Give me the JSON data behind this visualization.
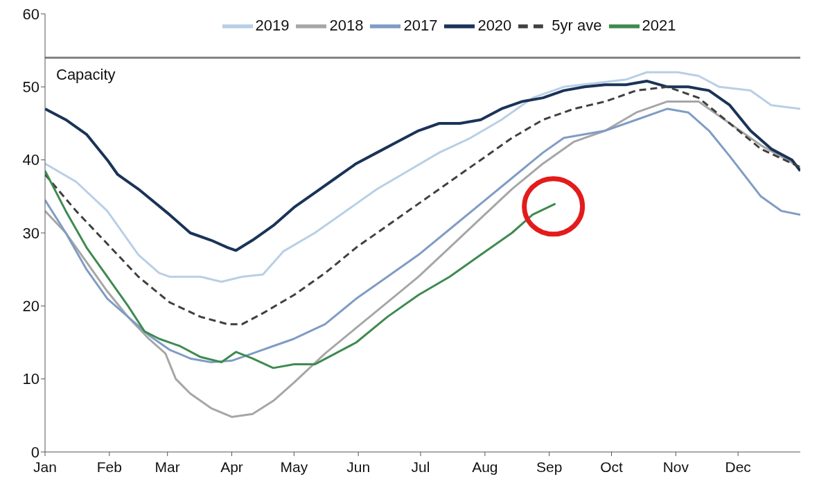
{
  "chart_data": {
    "type": "line",
    "xlim": [
      "--01-01",
      "--12-31"
    ],
    "xticks": [
      {
        "value": "--01-01",
        "label": "Jan"
      },
      {
        "value": "--02-01",
        "label": "Feb"
      },
      {
        "value": "--03-01",
        "label": "Mar"
      },
      {
        "value": "--04-01",
        "label": "Apr"
      },
      {
        "value": "--05-01",
        "label": "May"
      },
      {
        "value": "--06-01",
        "label": "Jun"
      },
      {
        "value": "--07-01",
        "label": "Jul"
      },
      {
        "value": "--08-01",
        "label": "Aug"
      },
      {
        "value": "--09-01",
        "label": "Sep"
      },
      {
        "value": "--10-01",
        "label": "Oct"
      },
      {
        "value": "--11-01",
        "label": "Nov"
      },
      {
        "value": "--12-01",
        "label": "Dec"
      }
    ],
    "ylim": [
      0,
      60
    ],
    "yticks": [
      0,
      10,
      20,
      30,
      40,
      50,
      60
    ],
    "legend": "top",
    "marker": "none",
    "ref_lines": [
      {
        "axis": "y",
        "value": 54,
        "label": "Capacity",
        "color": "#808080"
      }
    ],
    "series": [
      {
        "name": "2019",
        "color": "#b8cfe6",
        "x": [
          "--01-01",
          "--01-16",
          "--01-31",
          "--02-15",
          "--02-25",
          "--03-02",
          "--03-17",
          "--03-27",
          "--04-06",
          "--04-16",
          "--04-26",
          "--05-11",
          "--05-26",
          "--06-10",
          "--06-25",
          "--07-10",
          "--07-25",
          "--08-09",
          "--08-24",
          "--09-08",
          "--09-23",
          "--10-08",
          "--10-18",
          "--11-02",
          "--11-12",
          "--11-22",
          "--12-07",
          "--12-17",
          "--12-31"
        ],
        "values": [
          39.5,
          37,
          33,
          27,
          24.5,
          24,
          24,
          23.3,
          24,
          24.3,
          27.5,
          30,
          33,
          36,
          38.5,
          41,
          43,
          45.5,
          48.5,
          50,
          50.5,
          51,
          52,
          52,
          51.5,
          50,
          49.5,
          47.5,
          47
        ]
      },
      {
        "name": "2018",
        "color": "#a6a6a6",
        "x": [
          "--01-01",
          "--01-11",
          "--01-21",
          "--01-31",
          "--02-10",
          "--02-20",
          "--02-28",
          "--03-05",
          "--03-12",
          "--03-22",
          "--04-01",
          "--04-11",
          "--04-21",
          "--05-01",
          "--05-16",
          "--05-31",
          "--06-15",
          "--06-30",
          "--07-15",
          "--07-30",
          "--08-14",
          "--08-29",
          "--09-13",
          "--09-28",
          "--10-13",
          "--10-28",
          "--11-12",
          "--11-22",
          "--12-02",
          "--12-12",
          "--12-31"
        ],
        "values": [
          33,
          30,
          26,
          22,
          18.5,
          15.5,
          13.5,
          10,
          8,
          6,
          4.8,
          5.2,
          7,
          9.5,
          13.5,
          17,
          20.5,
          24,
          28,
          32,
          36,
          39.5,
          42.5,
          44,
          46.5,
          48,
          48,
          46,
          44,
          42,
          39
        ]
      },
      {
        "name": "2017",
        "color": "#7f9cc4",
        "x": [
          "--01-01",
          "--01-11",
          "--01-21",
          "--01-31",
          "--02-10",
          "--02-20",
          "--03-02",
          "--03-12",
          "--03-22",
          "--04-01",
          "--04-11",
          "--04-21",
          "--05-01",
          "--05-16",
          "--05-31",
          "--06-15",
          "--06-30",
          "--07-15",
          "--07-30",
          "--08-14",
          "--08-29",
          "--09-08",
          "--09-18",
          "--09-28",
          "--10-13",
          "--10-28",
          "--11-07",
          "--11-17",
          "--11-27",
          "--12-12",
          "--12-22",
          "--12-31"
        ],
        "values": [
          34.5,
          30,
          25,
          21,
          18.5,
          16,
          14,
          12.8,
          12.3,
          12.5,
          13.5,
          14.5,
          15.5,
          17.5,
          21,
          24,
          27,
          30.5,
          34,
          37.5,
          41,
          43,
          43.5,
          44,
          45.5,
          47,
          46.5,
          44,
          40.5,
          35,
          33,
          32.5
        ]
      },
      {
        "name": "2020",
        "color": "#1a3358",
        "x": [
          "--01-01",
          "--01-11",
          "--01-21",
          "--01-31",
          "--02-05",
          "--02-15",
          "--03-02",
          "--03-12",
          "--03-22",
          "--03-30",
          "--04-03",
          "--04-11",
          "--04-21",
          "--05-01",
          "--05-11",
          "--05-21",
          "--05-31",
          "--06-10",
          "--06-20",
          "--06-30",
          "--07-10",
          "--07-20",
          "--07-30",
          "--08-09",
          "--08-19",
          "--08-29",
          "--09-08",
          "--09-18",
          "--09-28",
          "--10-08",
          "--10-18",
          "--10-28",
          "--11-07",
          "--11-17",
          "--11-27",
          "--12-07",
          "--12-17",
          "--12-27",
          "--12-31"
        ],
        "values": [
          47,
          45.5,
          43.5,
          40,
          38,
          36,
          32.5,
          30,
          29,
          28,
          27.6,
          29,
          31,
          33.5,
          35.5,
          37.5,
          39.5,
          41,
          42.5,
          44,
          45,
          45,
          45.5,
          47,
          48,
          48.5,
          49.5,
          50,
          50.3,
          50.3,
          50.8,
          50,
          50,
          49.5,
          47.5,
          44,
          41.5,
          40,
          38.5
        ]
      },
      {
        "name": "5yr ave",
        "color": "#404040",
        "line_style": "dashed",
        "x": [
          "--01-01",
          "--01-16",
          "--01-31",
          "--02-15",
          "--03-02",
          "--03-17",
          "--03-30",
          "--04-06",
          "--04-16",
          "--05-01",
          "--05-16",
          "--05-31",
          "--06-15",
          "--06-30",
          "--07-15",
          "--07-30",
          "--08-14",
          "--08-29",
          "--09-13",
          "--09-28",
          "--10-13",
          "--10-28",
          "--11-12",
          "--11-27",
          "--12-12",
          "--12-31"
        ],
        "values": [
          38,
          33,
          28.5,
          24,
          20.5,
          18.5,
          17.5,
          17.5,
          19,
          21.5,
          24.5,
          28,
          31,
          34,
          37,
          40,
          43,
          45.5,
          47,
          48,
          49.5,
          50,
          48.5,
          45,
          41.5,
          39
        ]
      },
      {
        "name": "2021",
        "color": "#3e8a4f",
        "x": [
          "--01-01",
          "--01-11",
          "--01-21",
          "--01-31",
          "--02-10",
          "--02-18",
          "--02-25",
          "--03-07",
          "--03-17",
          "--03-27",
          "--04-03",
          "--04-11",
          "--04-21",
          "--05-01",
          "--05-11",
          "--05-21",
          "--05-31",
          "--06-15",
          "--06-30",
          "--07-15",
          "--07-30",
          "--08-14",
          "--08-24",
          "--09-04"
        ],
        "values": [
          38.5,
          33,
          28,
          24,
          20,
          16.5,
          15.5,
          14.5,
          13,
          12.3,
          13.7,
          12.8,
          11.5,
          12,
          12,
          13.5,
          15,
          18.5,
          21.5,
          24,
          27,
          30,
          32.5,
          34
        ]
      }
    ]
  }
}
